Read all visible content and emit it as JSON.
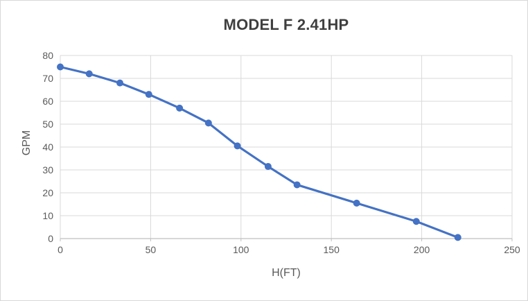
{
  "chart_data": {
    "type": "line",
    "title": "MODEL F 2.41HP",
    "xlabel": "H(FT)",
    "ylabel": "GPM",
    "xlim": [
      0,
      250
    ],
    "ylim": [
      0,
      80
    ],
    "x_ticks": [
      0,
      50,
      100,
      150,
      200,
      250
    ],
    "y_ticks": [
      0,
      10,
      20,
      30,
      40,
      50,
      60,
      70,
      80
    ],
    "grid": true,
    "legend": false,
    "series": [
      {
        "name": "MODEL F 2.41HP",
        "marker": "circle",
        "x": [
          0,
          16,
          33,
          49,
          66,
          82,
          98,
          115,
          131,
          164,
          197,
          220
        ],
        "y": [
          75,
          72,
          68,
          63,
          57,
          50.5,
          40.5,
          31.5,
          23.5,
          15.5,
          7.5,
          0.5
        ]
      }
    ]
  },
  "colors": {
    "series_line": "#4472c4",
    "gridline": "#d9d9d9",
    "axis_line": "#bfbfbf",
    "tick_text": "#595959",
    "title_text": "#3f3f3f",
    "background": "#ffffff",
    "border": "#d7d7d7"
  }
}
